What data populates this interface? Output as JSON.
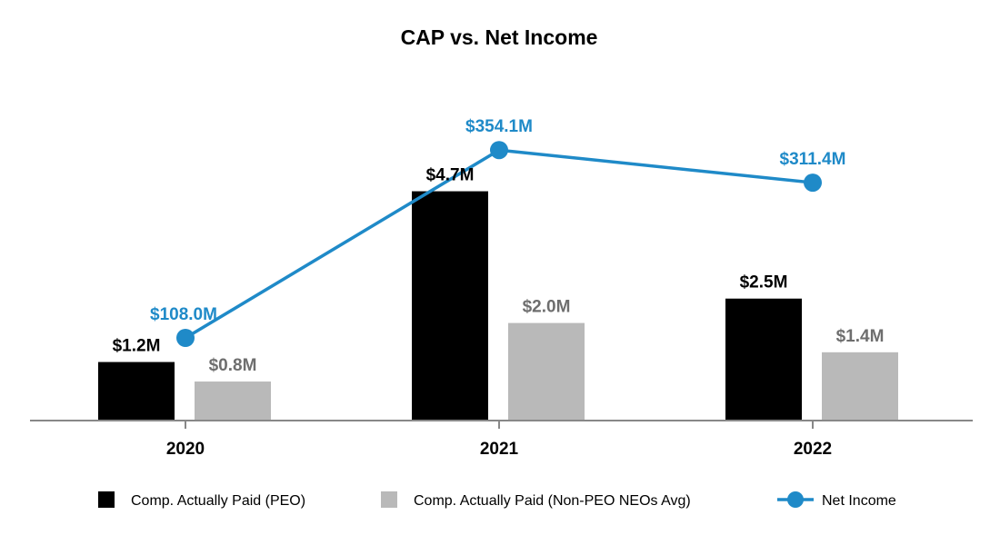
{
  "colors": {
    "peo": "#000000",
    "neo": "#b9b9b9",
    "net_income": "#1f8ac8",
    "axis": "#888888"
  },
  "chart_data": {
    "type": "bar",
    "title": "CAP vs. Net Income",
    "categories": [
      "2020",
      "2021",
      "2022"
    ],
    "series": [
      {
        "name": "Comp. Actually Paid (PEO)",
        "kind": "bar",
        "values": [
          1.2,
          4.7,
          2.5
        ],
        "labels": [
          "$1.2M",
          "$4.7M",
          "$2.5M"
        ]
      },
      {
        "name": "Comp. Actually Paid (Non-PEO NEOs Avg)",
        "kind": "bar",
        "values": [
          0.8,
          2.0,
          1.4
        ],
        "labels": [
          "$0.8M",
          "$2.0M",
          "$1.4M"
        ]
      },
      {
        "name": "Net Income",
        "kind": "line",
        "values": [
          108.0,
          354.1,
          311.4
        ],
        "labels": [
          "$108.0M",
          "$354.1M",
          "$311.4M"
        ]
      }
    ],
    "bar_ylim": [
      0,
      6.2
    ],
    "line_ylim": [
      -0.3,
      396
    ],
    "legend_position": "bottom",
    "grid": false
  }
}
